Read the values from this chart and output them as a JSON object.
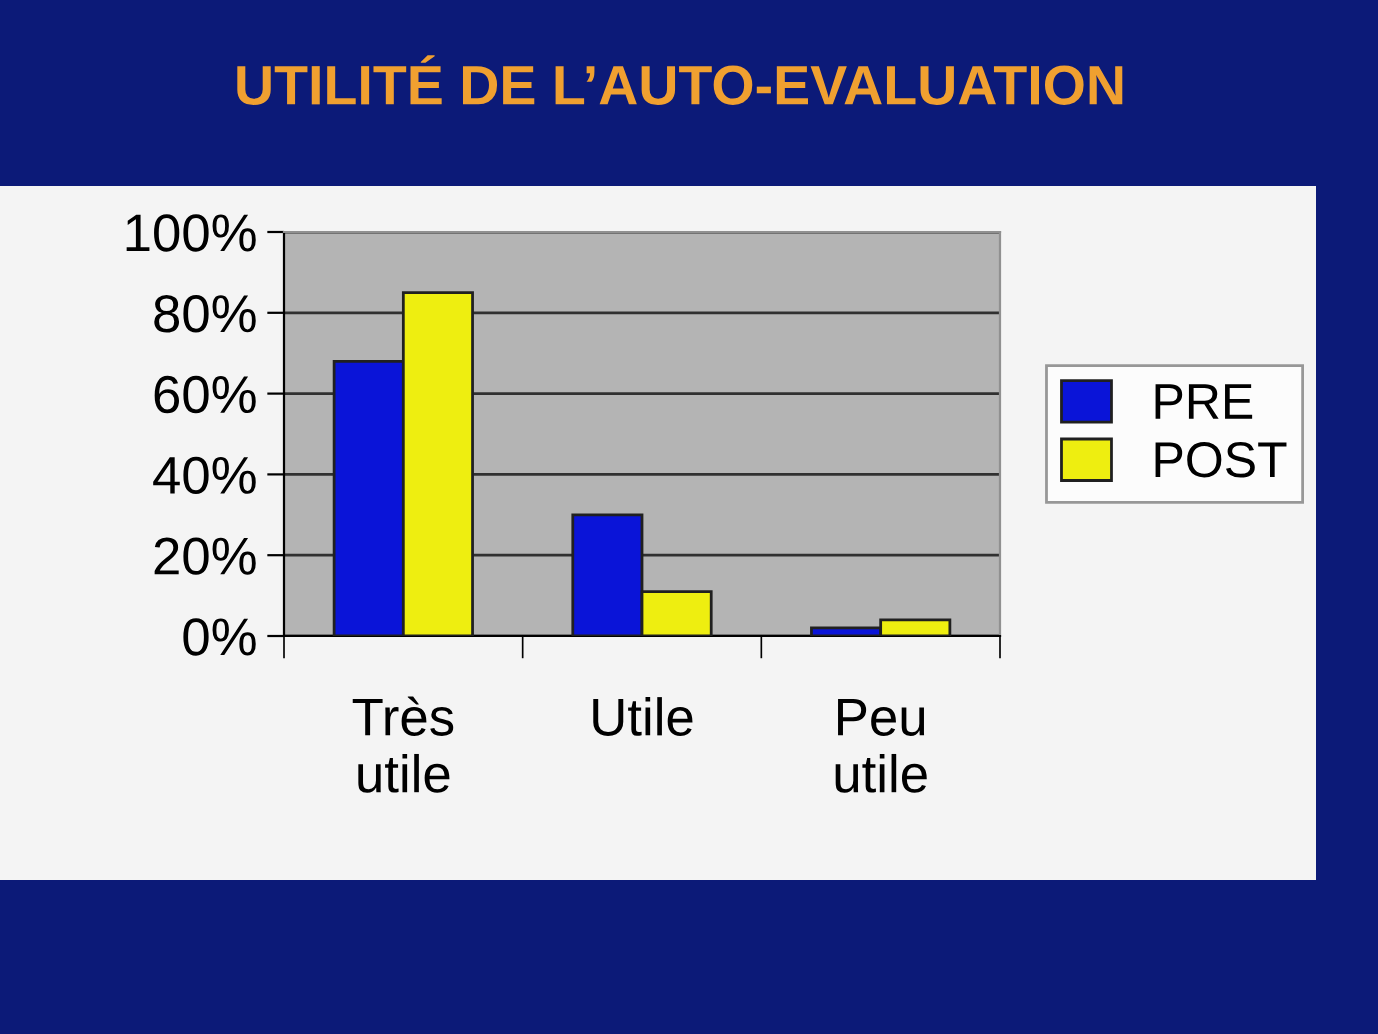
{
  "chart_data": {
    "type": "bar",
    "title": "UTILITÉ DE L’AUTO-EVALUATION",
    "categories": [
      "Très\nutile",
      "Utile",
      "Peu\nutile"
    ],
    "series": [
      {
        "name": "PRE",
        "color": "#0a14d8",
        "values": [
          68,
          30,
          2
        ]
      },
      {
        "name": "POST",
        "color": "#eeee10",
        "values": [
          85,
          11,
          4
        ]
      }
    ],
    "ylim": [
      0,
      100
    ],
    "yticks": [
      {
        "value": 0,
        "label": "0%"
      },
      {
        "value": 20,
        "label": "20%"
      },
      {
        "value": 40,
        "label": "40%"
      },
      {
        "value": 60,
        "label": "60%"
      },
      {
        "value": 80,
        "label": "80%"
      },
      {
        "value": 100,
        "label": "100%"
      }
    ],
    "grid": "y",
    "legend": "right"
  }
}
